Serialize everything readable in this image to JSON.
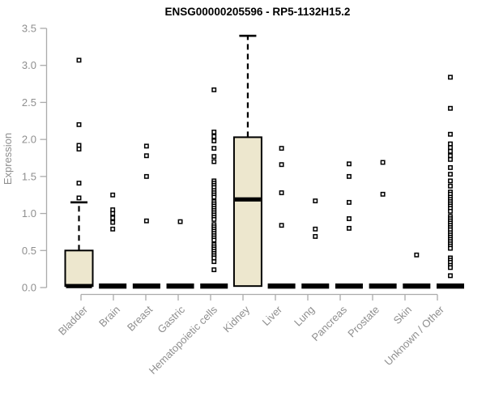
{
  "chart_data": {
    "type": "boxplot",
    "title": "ENSG00000205596 - RP5-1132H15.2",
    "xlabel": "",
    "ylabel": "Expression",
    "ylim": [
      0,
      3.5
    ],
    "yticks": [
      "0.0",
      "0.5",
      "1.0",
      "1.5",
      "2.0",
      "2.5",
      "3.0",
      "3.5"
    ],
    "grid": "off",
    "legend": "none",
    "x_tick_label_rotation": 45,
    "categories": [
      "Bladder",
      "Brain",
      "Breast",
      "Gastric",
      "Hematopoietic cells",
      "Kidney",
      "Liver",
      "Lung",
      "Pancreas",
      "Prostate",
      "Skin",
      "Unknown / Other"
    ],
    "series": [
      {
        "name": "Bladder",
        "q1": 0.02,
        "median": 0.02,
        "q3": 0.5,
        "whisker_low": 0.0,
        "whisker_high": 1.15,
        "outliers": [
          3.07,
          2.2,
          1.92,
          1.87,
          1.41,
          1.21
        ]
      },
      {
        "name": "Brain",
        "q1": 0.0,
        "median": 0.02,
        "q3": 0.03,
        "whisker_low": 0.0,
        "whisker_high": 0.03,
        "outliers": [
          1.25,
          1.05,
          1.0,
          0.94,
          0.88,
          0.79
        ]
      },
      {
        "name": "Breast",
        "q1": 0.0,
        "median": 0.02,
        "q3": 0.03,
        "whisker_low": 0.0,
        "whisker_high": 0.03,
        "outliers": [
          1.91,
          1.78,
          1.5,
          0.9
        ]
      },
      {
        "name": "Gastric",
        "q1": 0.0,
        "median": 0.02,
        "q3": 0.03,
        "whisker_low": 0.0,
        "whisker_high": 0.03,
        "outliers": [
          0.89
        ]
      },
      {
        "name": "Hematopoietic cells",
        "q1": 0.0,
        "median": 0.02,
        "q3": 0.03,
        "whisker_low": 0.0,
        "whisker_high": 0.03,
        "outliers": [
          2.67,
          2.1,
          2.04,
          1.98,
          1.88,
          1.77,
          1.7,
          1.44,
          1.41,
          1.38,
          1.35,
          1.31,
          1.28,
          1.25,
          1.22,
          1.16,
          1.13,
          1.1,
          1.07,
          1.04,
          1.01,
          0.98,
          0.95,
          0.92,
          0.85,
          0.82,
          0.79,
          0.76,
          0.73,
          0.7,
          0.67,
          0.64,
          0.58,
          0.55,
          0.52,
          0.49,
          0.46,
          0.43,
          0.4,
          0.35,
          0.24
        ]
      },
      {
        "name": "Kidney",
        "q1": 0.02,
        "median": 1.19,
        "q3": 2.03,
        "whisker_low": 0.0,
        "whisker_high": 3.4,
        "outliers": []
      },
      {
        "name": "Liver",
        "q1": 0.0,
        "median": 0.02,
        "q3": 0.03,
        "whisker_low": 0.0,
        "whisker_high": 0.03,
        "outliers": [
          1.88,
          1.66,
          1.28,
          0.84
        ]
      },
      {
        "name": "Lung",
        "q1": 0.0,
        "median": 0.02,
        "q3": 0.03,
        "whisker_low": 0.0,
        "whisker_high": 0.03,
        "outliers": [
          1.17,
          0.79,
          0.69
        ]
      },
      {
        "name": "Pancreas",
        "q1": 0.0,
        "median": 0.02,
        "q3": 0.03,
        "whisker_low": 0.0,
        "whisker_high": 0.03,
        "outliers": [
          1.67,
          1.5,
          1.15,
          0.93,
          0.8
        ]
      },
      {
        "name": "Prostate",
        "q1": 0.0,
        "median": 0.02,
        "q3": 0.03,
        "whisker_low": 0.0,
        "whisker_high": 0.03,
        "outliers": [
          1.69,
          1.26
        ]
      },
      {
        "name": "Skin",
        "q1": 0.0,
        "median": 0.02,
        "q3": 0.03,
        "whisker_low": 0.0,
        "whisker_high": 0.03,
        "outliers": [
          0.44
        ]
      },
      {
        "name": "Unknown / Other",
        "q1": 0.0,
        "median": 0.02,
        "q3": 0.03,
        "whisker_low": 0.0,
        "whisker_high": 0.03,
        "outliers": [
          2.84,
          2.42,
          2.07,
          1.94,
          1.89,
          1.84,
          1.78,
          1.73,
          1.62,
          1.53,
          1.44,
          1.37,
          1.29,
          1.26,
          1.22,
          1.19,
          1.16,
          1.13,
          1.1,
          1.07,
          1.03,
          0.96,
          0.93,
          0.9,
          0.87,
          0.84,
          0.81,
          0.78,
          0.74,
          0.71,
          0.68,
          0.65,
          0.62,
          0.59,
          0.56,
          0.53,
          0.4,
          0.37,
          0.34,
          0.3,
          0.27,
          0.16
        ]
      }
    ],
    "colors": {
      "box_fill": "#EDE7CE",
      "box_stroke": "#000000",
      "outlier_stroke": "#000000",
      "axis_line": "#ABABAB",
      "tick_text": "#8F8F8F",
      "title_text": "#000000",
      "background": "#FFFFFF"
    }
  }
}
